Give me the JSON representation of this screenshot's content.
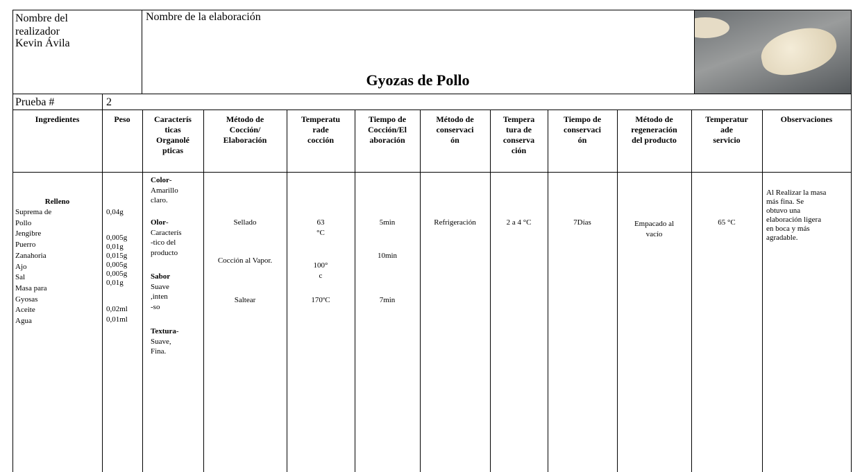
{
  "header": {
    "author_label": "Nombre del realizador",
    "author_name": "Kevin Ávila",
    "title_label": "Nombre de la elaboración",
    "title": "Gyozas de Pollo",
    "test_label": "Prueba #",
    "test_number": "2"
  },
  "columns": [
    [
      "Ingredientes"
    ],
    [
      "Peso"
    ],
    [
      "Caracterís",
      "ticas",
      "Organolé",
      "pticas"
    ],
    [
      "Método de",
      "Cocción/",
      "Elaboración"
    ],
    [
      "Temperatu",
      "rade",
      "cocción"
    ],
    [
      "Tiempo de",
      "Cocción/El",
      "aboración"
    ],
    [
      "Método de",
      "conservaci",
      "ón"
    ],
    [
      "Tempera",
      "tura de",
      "conserva",
      "ción"
    ],
    [
      "Tiempo de",
      "conservaci",
      "ón"
    ],
    [
      "Método de",
      "regeneración",
      "del producto"
    ],
    [
      "Temperatur",
      "ade",
      "servicio"
    ],
    [
      "Observaciones"
    ]
  ],
  "rows": [
    {
      "ingredients": {
        "group": "Relleno",
        "items": [
          "Suprema de",
          "Pollo",
          "Jengibre",
          "Puerro",
          "Zanahoria",
          "Ajo",
          "Sal",
          "Masa para",
          "Gyosas",
          "Aceite",
          "Agua"
        ]
      },
      "weights": [
        "0,04g",
        "0,005g",
        "0,01g",
        "0,015g",
        "0,005g",
        "0,005g",
        "0,01g",
        "0,02ml",
        "0,01ml"
      ],
      "characteristics": [
        {
          "label": "Color",
          "suffix": "-",
          "lines": [
            "Amarillo",
            "claro."
          ]
        },
        {
          "label": "Olor",
          "suffix": "-",
          "lines": [
            "Caracterís",
            "-tico del",
            "producto"
          ]
        },
        {
          "label": "Sabor",
          "lines": [
            "Suave",
            ",inten",
            "-so"
          ]
        },
        {
          "label": "Textura",
          "suffix": "-",
          "lines": [
            "Suave,",
            "Fina."
          ]
        }
      ],
      "methods": [
        "Sellado",
        "Cocción al Vapor.",
        "Saltear"
      ],
      "temperatures": [
        [
          "63",
          "°C"
        ],
        [
          "100°",
          "c"
        ],
        [
          "170ºC"
        ]
      ],
      "times": [
        "5min",
        "10min",
        "7min"
      ],
      "conservation_method": "Refrigeración",
      "conservation_temperature": "2 a 4 °C",
      "conservation_time": "7Días",
      "regeneration": [
        "Empacado al",
        "vacío"
      ],
      "service_temperature": "65 °C",
      "observations": [
        "Al Realizar la masa",
        "más fina. Se",
        "obtuvo una",
        "elaboración ligera",
        "en boca y más",
        "agradable."
      ]
    }
  ]
}
